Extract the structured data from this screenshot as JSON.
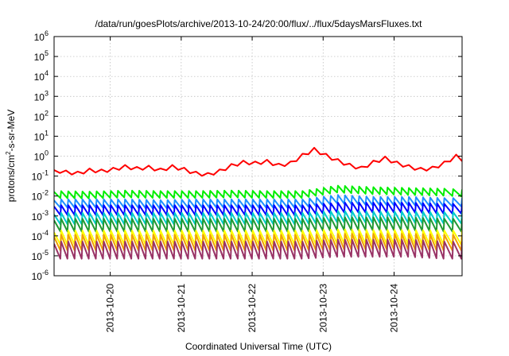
{
  "chart_data": {
    "type": "line",
    "title": "/data/run/goesPlots/archive/2013-10-24/20:00/flux/../flux/5daysMarsFluxes.txt",
    "xlabel": "Coordinated Universal Time (UTC)",
    "ylabel": {
      "base": "protons/cm",
      "sup": "2",
      "rest": "-s-sr-MeV"
    },
    "y_scale": "log",
    "ylim": [
      1e-06,
      1000000.0
    ],
    "y_ticks": [
      {
        "exp": "-6"
      },
      {
        "exp": "-5"
      },
      {
        "exp": "-4"
      },
      {
        "exp": "-3"
      },
      {
        "exp": "-2"
      },
      {
        "exp": "-1"
      },
      {
        "exp": "0"
      },
      {
        "exp": "1"
      },
      {
        "exp": "2"
      },
      {
        "exp": "3"
      },
      {
        "exp": "4"
      },
      {
        "exp": "5"
      },
      {
        "exp": "6"
      }
    ],
    "y_tick_base": "10",
    "xlim": [
      "2013-10-19 05:00",
      "2013-10-24 23:00"
    ],
    "x_ticks": [
      "2013-10-20",
      "2013-10-21",
      "2013-10-22",
      "2013-10-23",
      "2013-10-24"
    ],
    "grid": true,
    "legend": "none",
    "series": [
      {
        "color": "#ff0000",
        "x": [
          "2013-10-19 05:00",
          "2013-10-19 09:00",
          "2013-10-19 13:00",
          "2013-10-19 17:00",
          "2013-10-19 21:00",
          "2013-10-20 01:00",
          "2013-10-20 05:00",
          "2013-10-20 09:00",
          "2013-10-20 13:00",
          "2013-10-20 17:00",
          "2013-10-20 21:00",
          "2013-10-21 01:00",
          "2013-10-21 05:00",
          "2013-10-21 09:00",
          "2013-10-21 13:00",
          "2013-10-21 17:00",
          "2013-10-21 21:00",
          "2013-10-22 01:00",
          "2013-10-22 05:00",
          "2013-10-22 09:00",
          "2013-10-22 13:00",
          "2013-10-22 17:00",
          "2013-10-22 21:00",
          "2013-10-23 01:00",
          "2013-10-23 05:00",
          "2013-10-23 09:00",
          "2013-10-23 13:00",
          "2013-10-23 17:00",
          "2013-10-23 21:00",
          "2013-10-24 01:00",
          "2013-10-24 05:00",
          "2013-10-24 09:00",
          "2013-10-24 13:00",
          "2013-10-24 17:00",
          "2013-10-24 21:00",
          "2013-10-24 23:00"
        ],
        "values": [
          0.2,
          0.16,
          0.14,
          0.2,
          0.18,
          0.22,
          0.3,
          0.24,
          0.28,
          0.2,
          0.3,
          0.22,
          0.14,
          0.12,
          0.18,
          0.34,
          0.5,
          0.45,
          0.55,
          0.35,
          0.45,
          1.1,
          2.2,
          1.1,
          0.6,
          0.35,
          0.25,
          0.5,
          0.8,
          0.45,
          0.3,
          0.22,
          0.25,
          0.45,
          1.0,
          0.7
        ]
      },
      {
        "color": "#00ee00",
        "x": [
          "2013-10-19 05:00",
          "2013-10-19 17:00",
          "2013-10-20 05:00",
          "2013-10-20 17:00",
          "2013-10-21 05:00",
          "2013-10-21 17:00",
          "2013-10-22 05:00",
          "2013-10-22 17:00",
          "2013-10-23 05:00",
          "2013-10-23 17:00",
          "2013-10-24 05:00",
          "2013-10-24 17:00",
          "2013-10-24 23:00"
        ],
        "values": [
          0.016,
          0.015,
          0.017,
          0.016,
          0.016,
          0.017,
          0.016,
          0.016,
          0.03,
          0.025,
          0.023,
          0.021,
          0.019
        ]
      },
      {
        "color": "#1e90ff",
        "x": [
          "2013-10-19 05:00",
          "2013-10-19 17:00",
          "2013-10-20 05:00",
          "2013-10-20 17:00",
          "2013-10-21 05:00",
          "2013-10-21 17:00",
          "2013-10-22 05:00",
          "2013-10-22 17:00",
          "2013-10-23 05:00",
          "2013-10-23 17:00",
          "2013-10-24 05:00",
          "2013-10-24 17:00",
          "2013-10-24 23:00"
        ],
        "values": [
          0.006,
          0.006,
          0.006,
          0.0055,
          0.006,
          0.006,
          0.006,
          0.006,
          0.01,
          0.008,
          0.008,
          0.007,
          0.007
        ]
      },
      {
        "color": "#0000ff",
        "x": [
          "2013-10-19 05:00",
          "2013-10-19 17:00",
          "2013-10-20 05:00",
          "2013-10-20 17:00",
          "2013-10-21 05:00",
          "2013-10-21 17:00",
          "2013-10-22 05:00",
          "2013-10-22 17:00",
          "2013-10-23 05:00",
          "2013-10-23 17:00",
          "2013-10-24 05:00",
          "2013-10-24 17:00",
          "2013-10-24 23:00"
        ],
        "values": [
          0.003,
          0.003,
          0.003,
          0.003,
          0.003,
          0.003,
          0.003,
          0.003,
          0.004,
          0.004,
          0.004,
          0.0035,
          0.0035
        ]
      },
      {
        "color": "#00cccc",
        "x": [
          "2013-10-19 05:00",
          "2013-10-19 17:00",
          "2013-10-20 05:00",
          "2013-10-20 17:00",
          "2013-10-21 05:00",
          "2013-10-21 17:00",
          "2013-10-22 05:00",
          "2013-10-22 17:00",
          "2013-10-23 05:00",
          "2013-10-23 17:00",
          "2013-10-24 05:00",
          "2013-10-24 17:00",
          "2013-10-24 23:00"
        ],
        "values": [
          0.0012,
          0.0012,
          0.0012,
          0.0012,
          0.0012,
          0.0012,
          0.0012,
          0.0012,
          0.0015,
          0.0014,
          0.0014,
          0.0013,
          0.0013
        ]
      },
      {
        "color": "#229933",
        "x": [
          "2013-10-19 05:00",
          "2013-10-19 17:00",
          "2013-10-20 05:00",
          "2013-10-20 17:00",
          "2013-10-21 05:00",
          "2013-10-21 17:00",
          "2013-10-22 05:00",
          "2013-10-22 17:00",
          "2013-10-23 05:00",
          "2013-10-23 17:00",
          "2013-10-24 05:00",
          "2013-10-24 17:00",
          "2013-10-24 23:00"
        ],
        "values": [
          0.0006,
          0.0006,
          0.0006,
          0.0006,
          0.0006,
          0.0006,
          0.0006,
          0.0006,
          0.0007,
          0.0007,
          0.0007,
          0.0006,
          0.0006
        ]
      },
      {
        "color": "#ffff00",
        "x": [
          "2013-10-19 05:00",
          "2013-10-19 17:00",
          "2013-10-20 05:00",
          "2013-10-20 17:00",
          "2013-10-21 05:00",
          "2013-10-21 17:00",
          "2013-10-22 05:00",
          "2013-10-22 17:00",
          "2013-10-23 05:00",
          "2013-10-23 17:00",
          "2013-10-24 05:00",
          "2013-10-24 17:00",
          "2013-10-24 23:00"
        ],
        "values": [
          0.00015,
          0.00015,
          0.00015,
          0.00015,
          0.00015,
          0.00015,
          0.00015,
          0.00015,
          0.00017,
          0.00016,
          0.00016,
          0.00015,
          0.00015
        ]
      },
      {
        "color": "#f0a000",
        "x": [
          "2013-10-19 05:00",
          "2013-10-19 17:00",
          "2013-10-20 05:00",
          "2013-10-20 17:00",
          "2013-10-21 05:00",
          "2013-10-21 17:00",
          "2013-10-22 05:00",
          "2013-10-22 17:00",
          "2013-10-23 05:00",
          "2013-10-23 17:00",
          "2013-10-24 05:00",
          "2013-10-24 17:00",
          "2013-10-24 23:00"
        ],
        "values": [
          9e-05,
          9e-05,
          9e-05,
          9e-05,
          9e-05,
          9e-05,
          9e-05,
          9e-05,
          0.0001,
          0.0001,
          0.0001,
          9e-05,
          9e-05
        ]
      },
      {
        "color": "#993366",
        "x": [
          "2013-10-19 05:00",
          "2013-10-19 17:00",
          "2013-10-20 05:00",
          "2013-10-20 17:00",
          "2013-10-21 05:00",
          "2013-10-21 17:00",
          "2013-10-22 05:00",
          "2013-10-22 17:00",
          "2013-10-23 05:00",
          "2013-10-23 17:00",
          "2013-10-24 05:00",
          "2013-10-24 17:00",
          "2013-10-24 23:00"
        ],
        "values": [
          4e-05,
          4e-05,
          4e-05,
          4e-05,
          4e-05,
          4e-05,
          4e-05,
          4e-05,
          5e-05,
          5e-05,
          5e-05,
          4e-05,
          4e-05
        ]
      }
    ]
  }
}
